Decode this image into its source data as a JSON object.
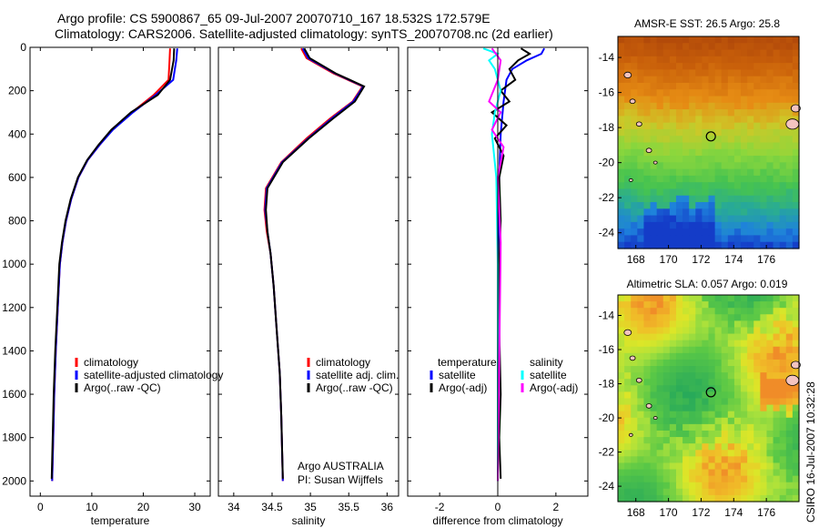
{
  "title": {
    "line1": "Argo profile: CS 5900867_65 09-Jul-2007 20070710_167 18.532S 172.579E",
    "line2": "Climatology: CARS2006. Satellite-adjusted climatology: synTS_20070708.nc (2d earlier)"
  },
  "credit": "CSIRO 16-Jul-2007 10:32:28",
  "colors": {
    "red": "#ff0000",
    "blue": "#0000ff",
    "black": "#000000",
    "cyan": "#00ffff",
    "magenta": "#ff00ff"
  },
  "chart_data": [
    {
      "id": "temperature",
      "type": "line",
      "xlabel": "temperature",
      "xlim": [
        -2,
        33
      ],
      "ylim": [
        2070,
        0
      ],
      "xticks": [
        0,
        10,
        20,
        30
      ],
      "yticks": [
        0,
        200,
        400,
        600,
        800,
        1000,
        1200,
        1400,
        1600,
        1800,
        2000
      ],
      "series": [
        {
          "name": "climatology",
          "color": "#ff0000",
          "points": [
            [
              25.2,
              5
            ],
            [
              25.1,
              60
            ],
            [
              24.9,
              150
            ],
            [
              22.0,
              220
            ],
            [
              17.8,
              300
            ],
            [
              14.0,
              380
            ],
            [
              11.5,
              450
            ],
            [
              9.2,
              520
            ],
            [
              7.4,
              600
            ],
            [
              6.0,
              700
            ],
            [
              5.0,
              800
            ],
            [
              4.3,
              900
            ],
            [
              3.8,
              1000
            ],
            [
              3.4,
              1200
            ],
            [
              3.0,
              1400
            ],
            [
              2.7,
              1600
            ],
            [
              2.5,
              1800
            ],
            [
              2.3,
              2000
            ]
          ]
        },
        {
          "name": "satellite-adjusted climatology",
          "color": "#0000ff",
          "points": [
            [
              26.6,
              5
            ],
            [
              26.4,
              60
            ],
            [
              25.8,
              150
            ],
            [
              22.4,
              220
            ],
            [
              18.0,
              300
            ],
            [
              14.1,
              380
            ],
            [
              11.5,
              450
            ],
            [
              9.2,
              520
            ],
            [
              7.4,
              600
            ],
            [
              6.0,
              700
            ],
            [
              5.0,
              800
            ],
            [
              4.3,
              900
            ],
            [
              3.8,
              1000
            ],
            [
              3.4,
              1200
            ],
            [
              3.0,
              1400
            ],
            [
              2.7,
              1600
            ],
            [
              2.5,
              1800
            ],
            [
              2.3,
              2000
            ]
          ]
        },
        {
          "name": "Argo(..raw -QC)",
          "color": "#000000",
          "points": [
            [
              26.0,
              5
            ],
            [
              25.9,
              60
            ],
            [
              25.2,
              150
            ],
            [
              22.8,
              220
            ],
            [
              17.6,
              300
            ],
            [
              13.8,
              380
            ],
            [
              11.3,
              450
            ],
            [
              9.1,
              520
            ],
            [
              7.3,
              600
            ],
            [
              5.9,
              700
            ],
            [
              4.9,
              800
            ],
            [
              4.2,
              900
            ],
            [
              3.7,
              1000
            ],
            [
              3.3,
              1200
            ],
            [
              2.9,
              1400
            ],
            [
              2.6,
              1600
            ],
            [
              2.4,
              1800
            ],
            [
              2.2,
              1990
            ]
          ]
        }
      ],
      "legend": [
        "climatology",
        "satellite-adjusted climatology",
        "Argo(..raw -QC)"
      ]
    },
    {
      "id": "salinity",
      "type": "line",
      "xlabel": "salinity",
      "xlim": [
        33.8,
        36.15
      ],
      "ylim": [
        2070,
        0
      ],
      "xticks": [
        34,
        34.5,
        35,
        35.5,
        36
      ],
      "series": [
        {
          "name": "climatology",
          "color": "#ff0000",
          "points": [
            [
              34.88,
              5
            ],
            [
              34.95,
              50
            ],
            [
              35.3,
              120
            ],
            [
              35.68,
              180
            ],
            [
              35.55,
              250
            ],
            [
              35.25,
              330
            ],
            [
              34.95,
              420
            ],
            [
              34.62,
              530
            ],
            [
              34.42,
              650
            ],
            [
              34.4,
              750
            ],
            [
              34.43,
              850
            ],
            [
              34.48,
              950
            ],
            [
              34.52,
              1100
            ],
            [
              34.56,
              1300
            ],
            [
              34.6,
              1500
            ],
            [
              34.62,
              1700
            ],
            [
              34.64,
              2000
            ]
          ]
        },
        {
          "name": "satellite adj. clim.",
          "color": "#0000ff",
          "points": [
            [
              34.9,
              5
            ],
            [
              34.97,
              50
            ],
            [
              35.32,
              120
            ],
            [
              35.69,
              180
            ],
            [
              35.56,
              250
            ],
            [
              35.27,
              330
            ],
            [
              34.97,
              420
            ],
            [
              34.63,
              530
            ],
            [
              34.43,
              650
            ],
            [
              34.41,
              750
            ],
            [
              34.44,
              850
            ],
            [
              34.48,
              950
            ],
            [
              34.52,
              1100
            ],
            [
              34.56,
              1300
            ],
            [
              34.6,
              1500
            ],
            [
              34.62,
              1700
            ],
            [
              34.64,
              2000
            ]
          ]
        },
        {
          "name": "Argo(..raw -QC)",
          "color": "#000000",
          "points": [
            [
              34.92,
              5
            ],
            [
              34.99,
              50
            ],
            [
              35.33,
              120
            ],
            [
              35.7,
              180
            ],
            [
              35.58,
              250
            ],
            [
              35.29,
              330
            ],
            [
              34.98,
              420
            ],
            [
              34.64,
              530
            ],
            [
              34.44,
              650
            ],
            [
              34.42,
              750
            ],
            [
              34.44,
              850
            ],
            [
              34.48,
              950
            ],
            [
              34.52,
              1100
            ],
            [
              34.56,
              1300
            ],
            [
              34.6,
              1500
            ],
            [
              34.62,
              1700
            ],
            [
              34.64,
              1990
            ]
          ]
        }
      ],
      "legend": [
        "climatology",
        "satellite adj. clim.",
        "Argo(..raw -QC)"
      ],
      "annotation": [
        "Argo AUSTRALIA",
        "PI: Susan Wijffels"
      ]
    },
    {
      "id": "difference",
      "type": "line",
      "xlabel": "difference from climatology",
      "xlim": [
        -3.1,
        3.1
      ],
      "ylim": [
        2070,
        0
      ],
      "xticks": [
        -2,
        0,
        2
      ],
      "series": [
        {
          "name": "temperature satellite",
          "color": "#0000ff",
          "points": [
            [
              1.6,
              5
            ],
            [
              1.5,
              30
            ],
            [
              1.0,
              60
            ],
            [
              0.5,
              100
            ],
            [
              0.3,
              150
            ],
            [
              0.2,
              250
            ],
            [
              0.1,
              400
            ],
            [
              0.05,
              600
            ],
            [
              0.0,
              1000
            ],
            [
              0.0,
              2000
            ]
          ]
        },
        {
          "name": "temperature Argo(-adj)",
          "color": "#000000",
          "points": [
            [
              0.8,
              5
            ],
            [
              1.1,
              30
            ],
            [
              0.7,
              60
            ],
            [
              0.4,
              100
            ],
            [
              0.6,
              150
            ],
            [
              0.1,
              200
            ],
            [
              0.4,
              250
            ],
            [
              -0.2,
              300
            ],
            [
              0.3,
              360
            ],
            [
              -0.1,
              420
            ],
            [
              0.2,
              500
            ],
            [
              0.05,
              600
            ],
            [
              0.1,
              800
            ],
            [
              0.05,
              1000
            ],
            [
              0.05,
              1300
            ],
            [
              0.1,
              1600
            ],
            [
              0.05,
              1800
            ],
            [
              0.1,
              1990
            ]
          ]
        },
        {
          "name": "salinity satellite",
          "color": "#00ffff",
          "points": [
            [
              -0.5,
              5
            ],
            [
              0.0,
              30
            ],
            [
              -0.3,
              60
            ],
            [
              -0.1,
              100
            ],
            [
              0.1,
              200
            ],
            [
              -0.1,
              300
            ],
            [
              -0.2,
              400
            ],
            [
              -0.05,
              600
            ],
            [
              0.0,
              1000
            ],
            [
              0.0,
              2000
            ]
          ]
        },
        {
          "name": "salinity Argo(-adj)",
          "color": "#ff00ff",
          "points": [
            [
              -0.2,
              5
            ],
            [
              0.1,
              60
            ],
            [
              0.0,
              150
            ],
            [
              -0.3,
              250
            ],
            [
              0.1,
              300
            ],
            [
              -0.2,
              380
            ],
            [
              0.2,
              460
            ],
            [
              0.0,
              600
            ],
            [
              0.1,
              900
            ],
            [
              0.0,
              2000
            ]
          ]
        }
      ],
      "legend": {
        "left": {
          "header": "temperature",
          "items": [
            "satellite",
            "Argo(-adj)"
          ]
        },
        "right": {
          "header": "salinity",
          "items": [
            "satellite",
            "Argo(-adj)"
          ]
        }
      }
    },
    {
      "id": "sst_map",
      "type": "heatmap",
      "title": "AMSR-E SST: 26.5 Argo: 25.8",
      "xlim": [
        166.9,
        178.0
      ],
      "ylim": [
        -24.9,
        -12.8
      ],
      "xticks": [
        168,
        170,
        172,
        174,
        176
      ],
      "yticks": [
        -14,
        -16,
        -18,
        -20,
        -22,
        -24
      ],
      "marker": [
        172.6,
        -18.5
      ]
    },
    {
      "id": "sla_map",
      "type": "heatmap",
      "title": "Altimetric SLA: 0.057 Argo: 0.019",
      "xlim": [
        166.9,
        178.0
      ],
      "ylim": [
        -24.9,
        -12.8
      ],
      "xticks": [
        168,
        170,
        172,
        174,
        176
      ],
      "yticks": [
        -14,
        -16,
        -18,
        -20,
        -22,
        -24
      ],
      "marker": [
        172.6,
        -18.5
      ]
    }
  ]
}
